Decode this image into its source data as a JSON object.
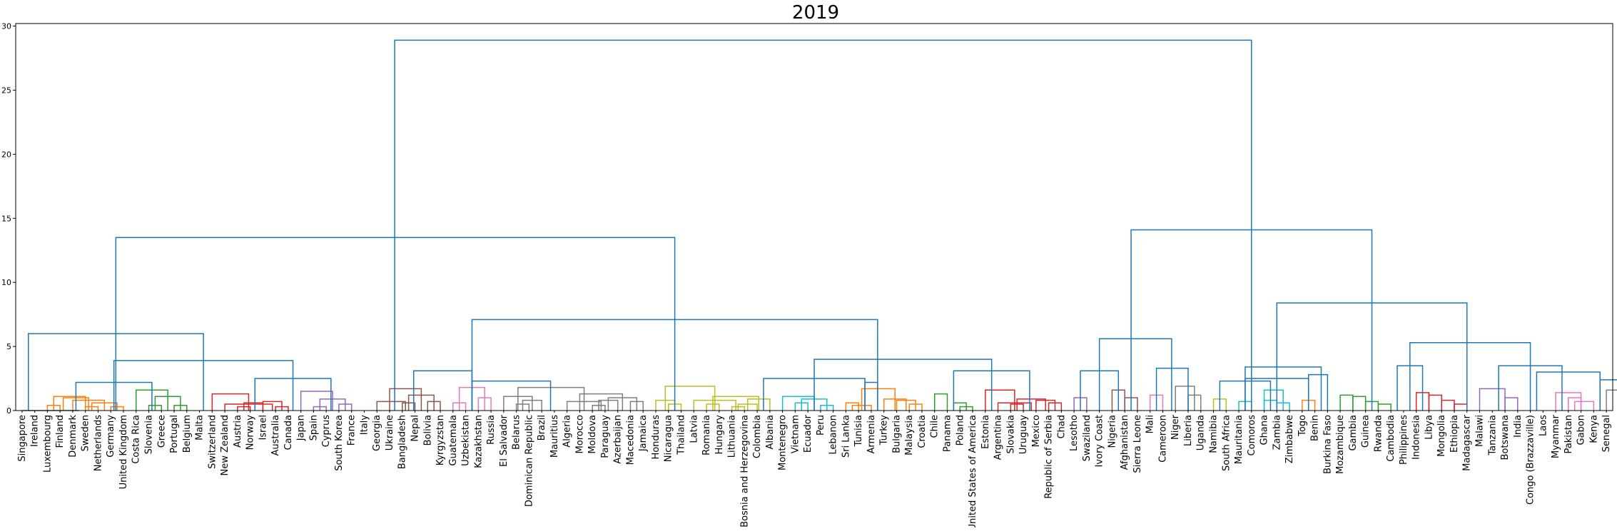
{
  "chart_data": {
    "type": "dendrogram",
    "title": "2019",
    "xlabel": "",
    "ylabel": "",
    "ylim": [
      0,
      30.2
    ],
    "yticks": [
      0,
      5,
      10,
      15,
      20,
      25,
      30
    ],
    "grid": false,
    "legend": "none",
    "leaves": [
      "Singapore",
      "Ireland",
      "Luxembourg",
      "Finland",
      "Denmark",
      "Sweden",
      "Netherlands",
      "Germany",
      "United Kingdom",
      "Costa Rica",
      "Slovenia",
      "Greece",
      "Portugal",
      "Belgium",
      "Malta",
      "Switzerland",
      "New Zealand",
      "Austria",
      "Norway",
      "Israel",
      "Australia",
      "Canada",
      "Japan",
      "Spain",
      "Cyprus",
      "South Korea",
      "France",
      "Italy",
      "Georgia",
      "Ukraine",
      "Bangladesh",
      "Nepal",
      "Bolivia",
      "Kyrgyzstan",
      "Guatemala",
      "Uzbekistan",
      "Kazakhstan",
      "Russia",
      "El Salvador",
      "Belarus",
      "Dominican Republic",
      "Brazil",
      "Mauritius",
      "Algeria",
      "Morocco",
      "Moldova",
      "Paraguay",
      "Azerbaijan",
      "Macedonia",
      "Jamaica",
      "Honduras",
      "Nicaragua",
      "Thailand",
      "Latvia",
      "Romania",
      "Hungary",
      "Lithuania",
      "Bosnia and Herzegovina",
      "Colombia",
      "Albania",
      "Montenegro",
      "Vietnam",
      "Ecuador",
      "Peru",
      "Lebanon",
      "Sri Lanka",
      "Tunisia",
      "Armenia",
      "Turkey",
      "Bulgaria",
      "Malaysia",
      "Croatia",
      "Chile",
      "Panama",
      "Poland",
      "United States of America",
      "Estonia",
      "Argentina",
      "Slovakia",
      "Uruguay",
      "Mexico",
      "Republic of Serbia",
      "Chad",
      "Lesotho",
      "Swaziland",
      "Ivory Coast",
      "Nigeria",
      "Afghanistan",
      "Sierra Leone",
      "Mali",
      "Cameroon",
      "Niger",
      "Liberia",
      "Uganda",
      "Namibia",
      "South Africa",
      "Mauritania",
      "Comoros",
      "Ghana",
      "Zambia",
      "Zimbabwe",
      "Togo",
      "Benin",
      "Burkina Faso",
      "Mozambique",
      "Gambia",
      "Guinea",
      "Rwanda",
      "Cambodia",
      "Philippines",
      "Indonesia",
      "Libya",
      "Mongolia",
      "Ethiopia",
      "Madagascar",
      "Malawi",
      "Tanzania",
      "Botswana",
      "India",
      "Congo (Brazzaville)",
      "Laos",
      "Myanmar",
      "Pakistan",
      "Gabon",
      "Kenya",
      "Senegal"
    ],
    "colors": {
      "root": "#1f77b4",
      "orange": "#ff7f0e",
      "green": "#2ca02c",
      "red": "#d62728",
      "purple": "#9467bd",
      "brown": "#8c564b",
      "pink": "#e377c2",
      "gray": "#7f7f7f",
      "olive": "#bcbd22",
      "cyan": "#17becf"
    },
    "links": [
      {
        "x1": 2.5,
        "x2": 3.5,
        "h": 0.4,
        "c": "orange"
      },
      {
        "x1": 3.0,
        "x2": 5.5,
        "h": 1.1,
        "c": "orange"
      },
      {
        "x1": 5.5,
        "x2": 6.5,
        "h": 0.3,
        "c": "orange"
      },
      {
        "x1": 7.5,
        "x2": 8.5,
        "h": 0.3,
        "c": "orange"
      },
      {
        "x1": 6.0,
        "x2": 8.0,
        "h": 0.6,
        "c": "orange"
      },
      {
        "x1": 4.5,
        "x2": 7.0,
        "h": 0.8,
        "c": "orange"
      },
      {
        "x1": 3.75,
        "x2": 5.75,
        "h": 1.0,
        "c": "orange"
      },
      {
        "x1": 10.5,
        "x2": 11.5,
        "h": 0.4,
        "c": "green"
      },
      {
        "x1": 12.5,
        "x2": 13.5,
        "h": 0.4,
        "c": "green"
      },
      {
        "x1": 11.0,
        "x2": 13.0,
        "h": 1.1,
        "c": "green"
      },
      {
        "x1": 9.5,
        "x2": 12.0,
        "h": 1.6,
        "c": "green"
      },
      {
        "x1": 17.5,
        "x2": 18.5,
        "h": 0.3,
        "c": "red"
      },
      {
        "x1": 18.0,
        "x2": 19.5,
        "h": 0.6,
        "c": "red"
      },
      {
        "x1": 20.5,
        "x2": 21.5,
        "h": 0.3,
        "c": "red"
      },
      {
        "x1": 19.5,
        "x2": 21.0,
        "h": 0.7,
        "c": "red"
      },
      {
        "x1": 16.5,
        "x2": 20.25,
        "h": 0.5,
        "c": "red"
      },
      {
        "x1": 15.5,
        "x2": 18.375,
        "h": 1.3,
        "c": "red"
      },
      {
        "x1": 23.5,
        "x2": 24.5,
        "h": 0.3,
        "c": "purple"
      },
      {
        "x1": 25.5,
        "x2": 26.5,
        "h": 0.5,
        "c": "purple"
      },
      {
        "x1": 24.0,
        "x2": 26.0,
        "h": 0.9,
        "c": "purple"
      },
      {
        "x1": 22.5,
        "x2": 25.0,
        "h": 1.5,
        "c": "purple"
      },
      {
        "x1": 30.5,
        "x2": 31.5,
        "h": 0.6,
        "c": "brown"
      },
      {
        "x1": 32.5,
        "x2": 33.5,
        "h": 0.7,
        "c": "brown"
      },
      {
        "x1": 31.0,
        "x2": 33.0,
        "h": 1.2,
        "c": "brown"
      },
      {
        "x1": 29.5,
        "x2": 32.0,
        "h": 1.7,
        "c": "brown"
      },
      {
        "x1": 28.5,
        "x2": 30.75,
        "h": 0.7,
        "c": "brown"
      },
      {
        "x1": 34.5,
        "x2": 35.5,
        "h": 0.6,
        "c": "pink"
      },
      {
        "x1": 36.5,
        "x2": 37.5,
        "h": 1.0,
        "c": "pink"
      },
      {
        "x1": 35.0,
        "x2": 37.0,
        "h": 1.8,
        "c": "pink"
      },
      {
        "x1": 39.5,
        "x2": 40.5,
        "h": 0.5,
        "c": "gray"
      },
      {
        "x1": 40.0,
        "x2": 41.5,
        "h": 0.8,
        "c": "gray"
      },
      {
        "x1": 38.5,
        "x2": 40.75,
        "h": 1.1,
        "c": "gray"
      },
      {
        "x1": 45.5,
        "x2": 46.5,
        "h": 0.4,
        "c": "gray"
      },
      {
        "x1": 46.0,
        "x2": 47.5,
        "h": 0.8,
        "c": "gray"
      },
      {
        "x1": 48.5,
        "x2": 49.5,
        "h": 0.7,
        "c": "gray"
      },
      {
        "x1": 46.75,
        "x2": 49.0,
        "h": 1.0,
        "c": "gray"
      },
      {
        "x1": 44.5,
        "x2": 47.875,
        "h": 1.3,
        "c": "gray"
      },
      {
        "x1": 43.5,
        "x2": 46.1875,
        "h": 0.7,
        "c": "gray"
      },
      {
        "x1": 39.625,
        "x2": 44.84375,
        "h": 1.8,
        "c": "gray"
      },
      {
        "x1": 51.5,
        "x2": 52.5,
        "h": 0.5,
        "c": "olive"
      },
      {
        "x1": 50.5,
        "x2": 52.0,
        "h": 0.8,
        "c": "olive"
      },
      {
        "x1": 54.5,
        "x2": 55.5,
        "h": 0.5,
        "c": "olive"
      },
      {
        "x1": 56.5,
        "x2": 57.5,
        "h": 0.3,
        "c": "olive"
      },
      {
        "x1": 57.0,
        "x2": 58.5,
        "h": 0.5,
        "c": "olive"
      },
      {
        "x1": 57.75,
        "x2": 59.5,
        "h": 0.9,
        "c": "olive"
      },
      {
        "x1": 55.0,
        "x2": 58.625,
        "h": 1.1,
        "c": "olive"
      },
      {
        "x1": 53.5,
        "x2": 56.8125,
        "h": 0.8,
        "c": "olive"
      },
      {
        "x1": 51.25,
        "x2": 55.15625,
        "h": 1.9,
        "c": "olive"
      },
      {
        "x1": 61.5,
        "x2": 62.5,
        "h": 0.6,
        "c": "cyan"
      },
      {
        "x1": 63.5,
        "x2": 64.5,
        "h": 0.4,
        "c": "cyan"
      },
      {
        "x1": 62.0,
        "x2": 64.0,
        "h": 0.9,
        "c": "cyan"
      },
      {
        "x1": 60.5,
        "x2": 63.0,
        "h": 1.1,
        "c": "cyan"
      },
      {
        "x1": 65.5,
        "x2": 66.5,
        "h": 0.6,
        "c": "orange"
      },
      {
        "x1": 66.0,
        "x2": 67.5,
        "h": 0.4,
        "c": "orange"
      },
      {
        "x1": 70.5,
        "x2": 71.5,
        "h": 0.5,
        "c": "orange"
      },
      {
        "x1": 69.5,
        "x2": 71.0,
        "h": 0.8,
        "c": "orange"
      },
      {
        "x1": 68.5,
        "x2": 70.25,
        "h": 0.9,
        "c": "orange"
      },
      {
        "x1": 66.75,
        "x2": 69.375,
        "h": 1.7,
        "c": "orange"
      },
      {
        "x1": 72.5,
        "x2": 73.5,
        "h": 1.3,
        "c": "green"
      },
      {
        "x1": 74.5,
        "x2": 75.5,
        "h": 0.3,
        "c": "green"
      },
      {
        "x1": 74.0,
        "x2": 75.0,
        "h": 0.6,
        "c": "green"
      },
      {
        "x1": 78.5,
        "x2": 79.5,
        "h": 0.5,
        "c": "red"
      },
      {
        "x1": 81.5,
        "x2": 82.5,
        "h": 0.6,
        "c": "red"
      },
      {
        "x1": 80.5,
        "x2": 82.0,
        "h": 0.8,
        "c": "red"
      },
      {
        "x1": 79.0,
        "x2": 81.25,
        "h": 0.9,
        "c": "red"
      },
      {
        "x1": 77.5,
        "x2": 80.125,
        "h": 0.6,
        "c": "red"
      },
      {
        "x1": 76.5,
        "x2": 78.8125,
        "h": 1.6,
        "c": "red"
      },
      {
        "x1": 83.5,
        "x2": 84.5,
        "h": 1.0,
        "c": "purple"
      },
      {
        "x1": 86.5,
        "x2": 87.5,
        "h": 1.6,
        "c": "brown"
      },
      {
        "x1": 87.5,
        "x2": 88.5,
        "h": 1.0,
        "c": "brown"
      },
      {
        "x1": 89.5,
        "x2": 90.5,
        "h": 1.2,
        "c": "pink"
      },
      {
        "x1": 92.5,
        "x2": 93.5,
        "h": 1.2,
        "c": "gray"
      },
      {
        "x1": 91.5,
        "x2": 93.0,
        "h": 1.9,
        "c": "gray"
      },
      {
        "x1": 94.5,
        "x2": 95.5,
        "h": 0.9,
        "c": "olive"
      },
      {
        "x1": 96.5,
        "x2": 97.5,
        "h": 0.7,
        "c": "cyan"
      },
      {
        "x1": 98.5,
        "x2": 99.5,
        "h": 0.8,
        "c": "cyan"
      },
      {
        "x1": 99.5,
        "x2": 100.5,
        "h": 0.6,
        "c": "cyan"
      },
      {
        "x1": 98.5,
        "x2": 100.0,
        "h": 1.6,
        "c": "cyan"
      },
      {
        "x1": 101.5,
        "x2": 102.5,
        "h": 0.8,
        "c": "orange"
      },
      {
        "x1": 104.5,
        "x2": 105.5,
        "h": 1.2,
        "c": "green"
      },
      {
        "x1": 105.5,
        "x2": 106.5,
        "h": 1.1,
        "c": "green"
      },
      {
        "x1": 106.5,
        "x2": 107.5,
        "h": 0.7,
        "c": "green"
      },
      {
        "x1": 107.5,
        "x2": 108.5,
        "h": 0.5,
        "c": "green"
      },
      {
        "x1": 110.5,
        "x2": 111.5,
        "h": 1.4,
        "c": "red"
      },
      {
        "x1": 111.5,
        "x2": 112.5,
        "h": 1.2,
        "c": "red"
      },
      {
        "x1": 112.5,
        "x2": 113.5,
        "h": 0.8,
        "c": "red"
      },
      {
        "x1": 113.5,
        "x2": 114.5,
        "h": 0.5,
        "c": "red"
      },
      {
        "x1": 115.5,
        "x2": 117.5,
        "h": 1.7,
        "c": "purple"
      },
      {
        "x1": 117.5,
        "x2": 118.5,
        "h": 1.0,
        "c": "purple"
      },
      {
        "x1": 121.5,
        "x2": 123.5,
        "h": 1.4,
        "c": "pink"
      },
      {
        "x1": 122.5,
        "x2": 123.5,
        "h": 1.0,
        "c": "pink"
      },
      {
        "x1": 123.0,
        "x2": 124.5,
        "h": 0.7,
        "c": "pink"
      },
      {
        "x1": 125.5,
        "x2": 126.5,
        "h": 1.6,
        "c": "gray"
      },
      {
        "x1": 126.5,
        "x2": 127.5,
        "h": 1.2,
        "c": "gray"
      },
      {
        "x1": 0.5,
        "x2": 5.0,
        "h": 0.0,
        "c": "root"
      },
      {
        "x1": 4.75,
        "x2": 10.75,
        "h": 2.2,
        "c": "root"
      },
      {
        "x1": 18.875,
        "x2": 24.875,
        "h": 2.5,
        "c": "root"
      },
      {
        "x1": 7.75,
        "x2": 21.875,
        "h": 3.9,
        "c": "root"
      },
      {
        "x1": 1.0,
        "x2": 14.8125,
        "h": 6.0,
        "c": "root"
      },
      {
        "x1": 31.4,
        "x2": 36.0,
        "h": 3.1,
        "c": "root"
      },
      {
        "x1": 36.0,
        "x2": 42.2,
        "h": 2.3,
        "c": "root"
      },
      {
        "x1": 59.0,
        "x2": 67.0,
        "h": 2.5,
        "c": "root"
      },
      {
        "x1": 67.0,
        "x2": 68.0,
        "h": 2.2,
        "c": "root"
      },
      {
        "x1": 74.0,
        "x2": 80.0,
        "h": 3.1,
        "c": "root"
      },
      {
        "x1": 63.0,
        "x2": 77.0,
        "h": 4.0,
        "c": "root"
      },
      {
        "x1": 36.0,
        "x2": 68.0,
        "h": 7.1,
        "c": "root"
      },
      {
        "x1": 7.9,
        "x2": 52.0,
        "h": 13.5,
        "c": "root"
      },
      {
        "x1": 84.0,
        "x2": 87.0,
        "h": 3.1,
        "c": "root"
      },
      {
        "x1": 90.0,
        "x2": 92.5,
        "h": 3.3,
        "c": "root"
      },
      {
        "x1": 85.5,
        "x2": 91.2,
        "h": 5.6,
        "c": "root"
      },
      {
        "x1": 95.0,
        "x2": 99.0,
        "h": 2.3,
        "c": "root"
      },
      {
        "x1": 97.0,
        "x2": 102.0,
        "h": 2.5,
        "c": "root"
      },
      {
        "x1": 102.0,
        "x2": 103.5,
        "h": 2.8,
        "c": "root"
      },
      {
        "x1": 97.0,
        "x2": 103.0,
        "h": 3.4,
        "c": "root"
      },
      {
        "x1": 109.0,
        "x2": 111.0,
        "h": 3.5,
        "c": "root"
      },
      {
        "x1": 117.0,
        "x2": 122.0,
        "h": 3.5,
        "c": "root"
      },
      {
        "x1": 120.0,
        "x2": 125.0,
        "h": 3.0,
        "c": "root"
      },
      {
        "x1": 125.0,
        "x2": 126.5,
        "h": 2.4,
        "c": "root"
      },
      {
        "x1": 110.0,
        "x2": 119.5,
        "h": 5.3,
        "c": "root"
      },
      {
        "x1": 99.5,
        "x2": 114.5,
        "h": 8.4,
        "c": "root"
      },
      {
        "x1": 88.0,
        "x2": 107.0,
        "h": 14.1,
        "c": "root"
      },
      {
        "x1": 29.9,
        "x2": 97.5,
        "h": 28.9,
        "c": "root"
      }
    ]
  }
}
